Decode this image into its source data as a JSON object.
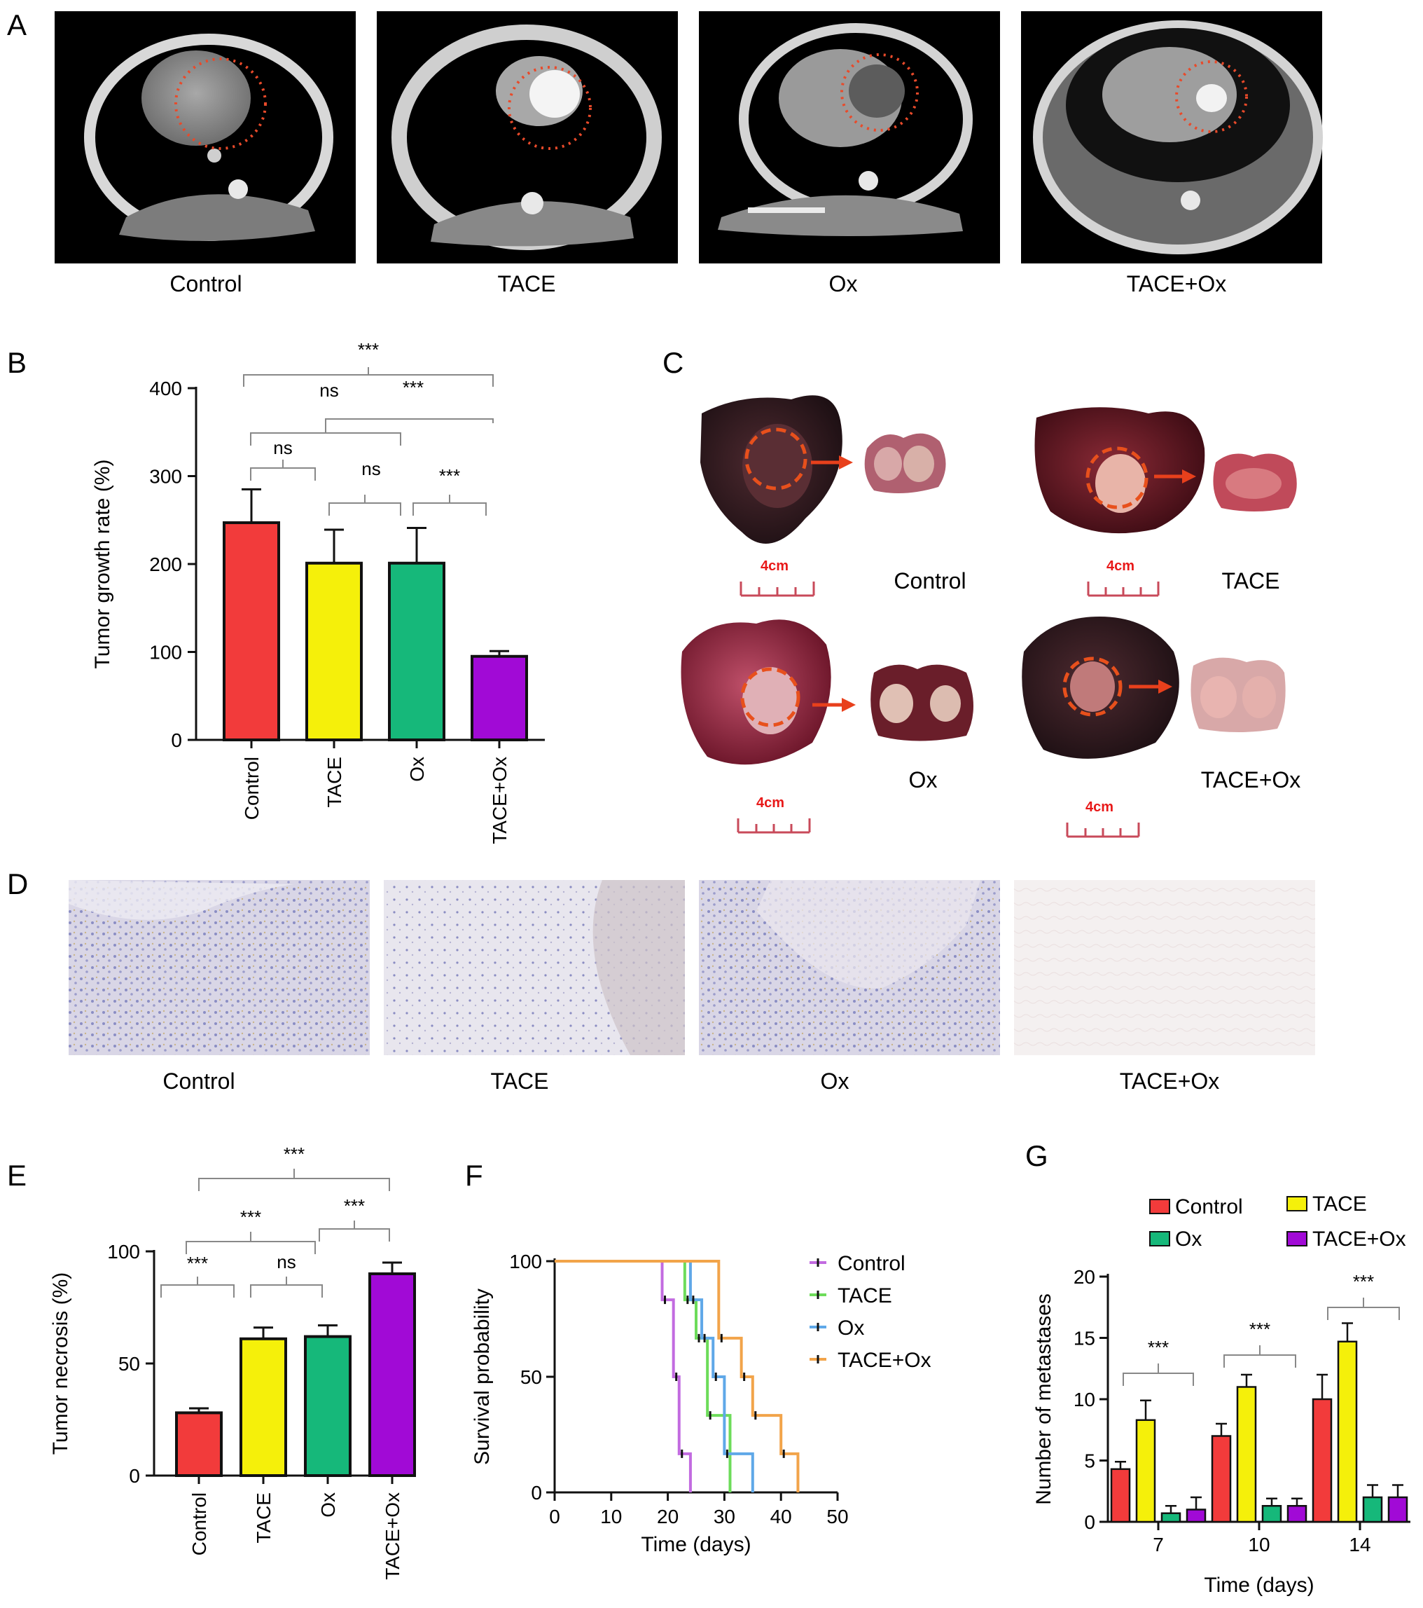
{
  "panels": {
    "A": {
      "label": "A",
      "captions": [
        "Control",
        "TACE",
        "Ox",
        "TACE+Ox"
      ]
    },
    "B": {
      "label": "B",
      "significance": [
        "***",
        "ns",
        "***",
        "ns",
        "ns",
        "***"
      ]
    },
    "C": {
      "label": "C",
      "captions": [
        "Control",
        "TACE",
        "Ox",
        "TACE+Ox"
      ],
      "scale_label": "4cm"
    },
    "D": {
      "label": "D",
      "captions": [
        "Control",
        "TACE",
        "Ox",
        "TACE+Ox"
      ]
    },
    "E": {
      "label": "E",
      "significance": [
        "***",
        "***",
        "***",
        "***",
        "ns"
      ]
    },
    "F": {
      "label": "F"
    },
    "G": {
      "label": "G",
      "significance": [
        "***",
        "***",
        "***"
      ]
    }
  },
  "colors": {
    "control": "#f23b3b",
    "tace": "#f5f00a",
    "ox": "#16b87a",
    "tace_ox": "#a10ad6",
    "km_control": "#c26be0",
    "km_tace": "#6ddc5a",
    "km_ox": "#5fa8e8",
    "km_tace_ox": "#f2a44a"
  },
  "chart_data": [
    {
      "panel": "B",
      "type": "bar",
      "categories": [
        "Control",
        "TACE",
        "Ox",
        "TACE+Ox"
      ],
      "values": [
        247,
        201,
        201,
        95
      ],
      "errors": [
        38,
        38,
        40,
        6
      ],
      "ylabel": "Tumor growth rate (%)",
      "ylim": [
        0,
        400
      ],
      "yticks": [
        0,
        100,
        200,
        300,
        400
      ]
    },
    {
      "panel": "E",
      "type": "bar",
      "categories": [
        "Control",
        "TACE",
        "Ox",
        "TACE+Ox"
      ],
      "values": [
        28,
        61,
        62,
        90
      ],
      "errors": [
        2,
        5,
        5,
        5
      ],
      "ylabel": "Tumor necrosis (%)",
      "ylim": [
        0,
        100
      ],
      "yticks": [
        0,
        50,
        100
      ]
    },
    {
      "panel": "F",
      "type": "line",
      "step": true,
      "xlabel": "Time (days)",
      "ylabel": "Survival probability",
      "xlim": [
        0,
        50
      ],
      "ylim": [
        0,
        100
      ],
      "xticks": [
        0,
        10,
        20,
        30,
        40,
        50
      ],
      "yticks": [
        0,
        50,
        100
      ],
      "legend_position": "top-right",
      "series": [
        {
          "name": "Control",
          "x": [
            0,
            19,
            21,
            22,
            24
          ],
          "y": [
            100,
            83.3,
            50,
            16.7,
            0
          ]
        },
        {
          "name": "TACE",
          "x": [
            0,
            23,
            25,
            27,
            31
          ],
          "y": [
            100,
            83.3,
            66.7,
            33.3,
            0
          ]
        },
        {
          "name": "Ox",
          "x": [
            0,
            24,
            26,
            28,
            30,
            35
          ],
          "y": [
            100,
            83.3,
            66.7,
            50,
            16.7,
            0
          ]
        },
        {
          "name": "TACE+Ox",
          "x": [
            0,
            29,
            33,
            35,
            40,
            43
          ],
          "y": [
            100,
            66.7,
            50,
            33.3,
            16.7,
            0
          ]
        }
      ]
    },
    {
      "panel": "G",
      "type": "bar",
      "categories": [
        "7",
        "10",
        "14"
      ],
      "xlabel": "Time (days)",
      "ylabel": "Number of metastases",
      "ylim": [
        0,
        20
      ],
      "yticks": [
        0,
        5,
        10,
        15,
        20
      ],
      "legend_position": "top",
      "series": [
        {
          "name": "Control",
          "values": [
            4.3,
            7.0,
            10.0
          ],
          "errors": [
            0.6,
            1.0,
            2.0
          ]
        },
        {
          "name": "TACE",
          "values": [
            8.3,
            11.0,
            14.7
          ],
          "errors": [
            1.6,
            1.0,
            1.5
          ]
        },
        {
          "name": "Ox",
          "values": [
            0.7,
            1.3,
            2.0
          ],
          "errors": [
            0.6,
            0.6,
            1.0
          ]
        },
        {
          "name": "TACE+Ox",
          "values": [
            1.0,
            1.3,
            2.0
          ],
          "errors": [
            1.0,
            0.6,
            1.0
          ]
        }
      ]
    }
  ]
}
